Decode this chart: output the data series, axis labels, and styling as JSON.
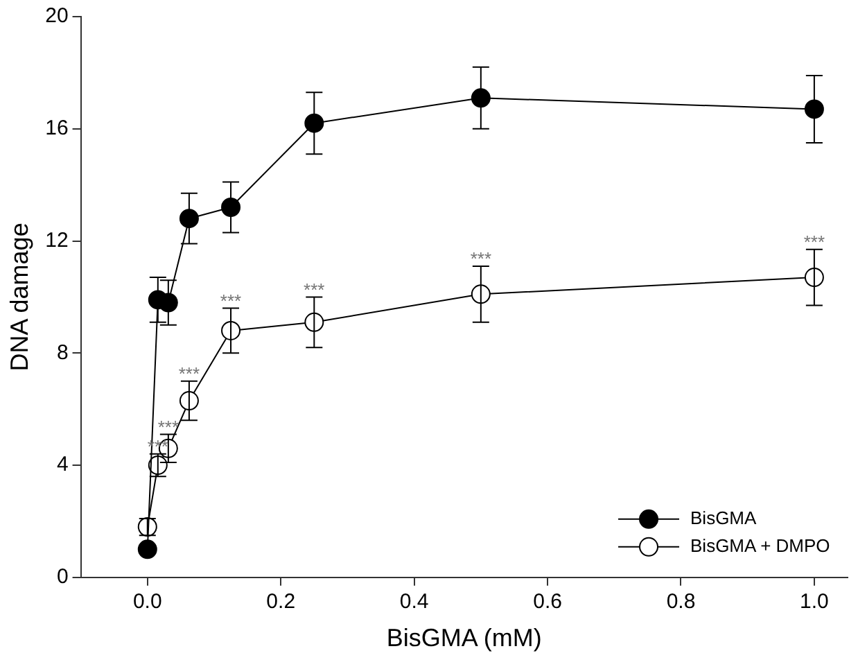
{
  "chart_data": {
    "type": "line",
    "xlabel": "BisGMA (mM)",
    "ylabel": "DNA damage",
    "xlim": [
      -0.1,
      1.05
    ],
    "xticks": [
      {
        "value": 0,
        "label": "0.0"
      },
      {
        "value": 0.2,
        "label": "0.2"
      },
      {
        "value": 0.4,
        "label": "0.4"
      },
      {
        "value": 0.6,
        "label": "0.6"
      },
      {
        "value": 0.8,
        "label": "0.8"
      },
      {
        "value": 1,
        "label": "1.0"
      }
    ],
    "ylim": [
      0,
      20
    ],
    "yticks": [
      0,
      4,
      8,
      12,
      16,
      20
    ],
    "x": [
      0,
      0.015625,
      0.03125,
      0.0625,
      0.125,
      0.25,
      0.5,
      1.0
    ],
    "marker": "circle",
    "series": [
      {
        "name": "BisGMA",
        "color": "#000000",
        "values": [
          1.0,
          9.9,
          9.8,
          12.8,
          13.2,
          16.2,
          17.1,
          16.7
        ],
        "errors": [
          null,
          0.8,
          0.8,
          0.9,
          0.9,
          1.1,
          1.1,
          1.2
        ]
      },
      {
        "name": "BisGMA + DMPO",
        "color": "#ffffff",
        "values": [
          1.8,
          4.0,
          4.6,
          6.3,
          8.8,
          9.1,
          10.1,
          10.7
        ],
        "errors": [
          0.3,
          0.4,
          0.5,
          0.7,
          0.8,
          0.9,
          1.0,
          1.0
        ]
      }
    ],
    "annotations": [
      {
        "text": "***",
        "x": 0.015625,
        "y": 4.4
      },
      {
        "text": "***",
        "x": 0.03125,
        "y": 5.1
      },
      {
        "text": "***",
        "x": 0.0625,
        "y": 7.0
      },
      {
        "text": "***",
        "x": 0.125,
        "y": 9.6
      },
      {
        "text": "***",
        "x": 0.25,
        "y": 10.0
      },
      {
        "text": "***",
        "x": 0.5,
        "y": 11.1
      },
      {
        "text": "***",
        "x": 1.0,
        "y": 11.7
      }
    ],
    "legend": "bottom right",
    "grid": false
  }
}
